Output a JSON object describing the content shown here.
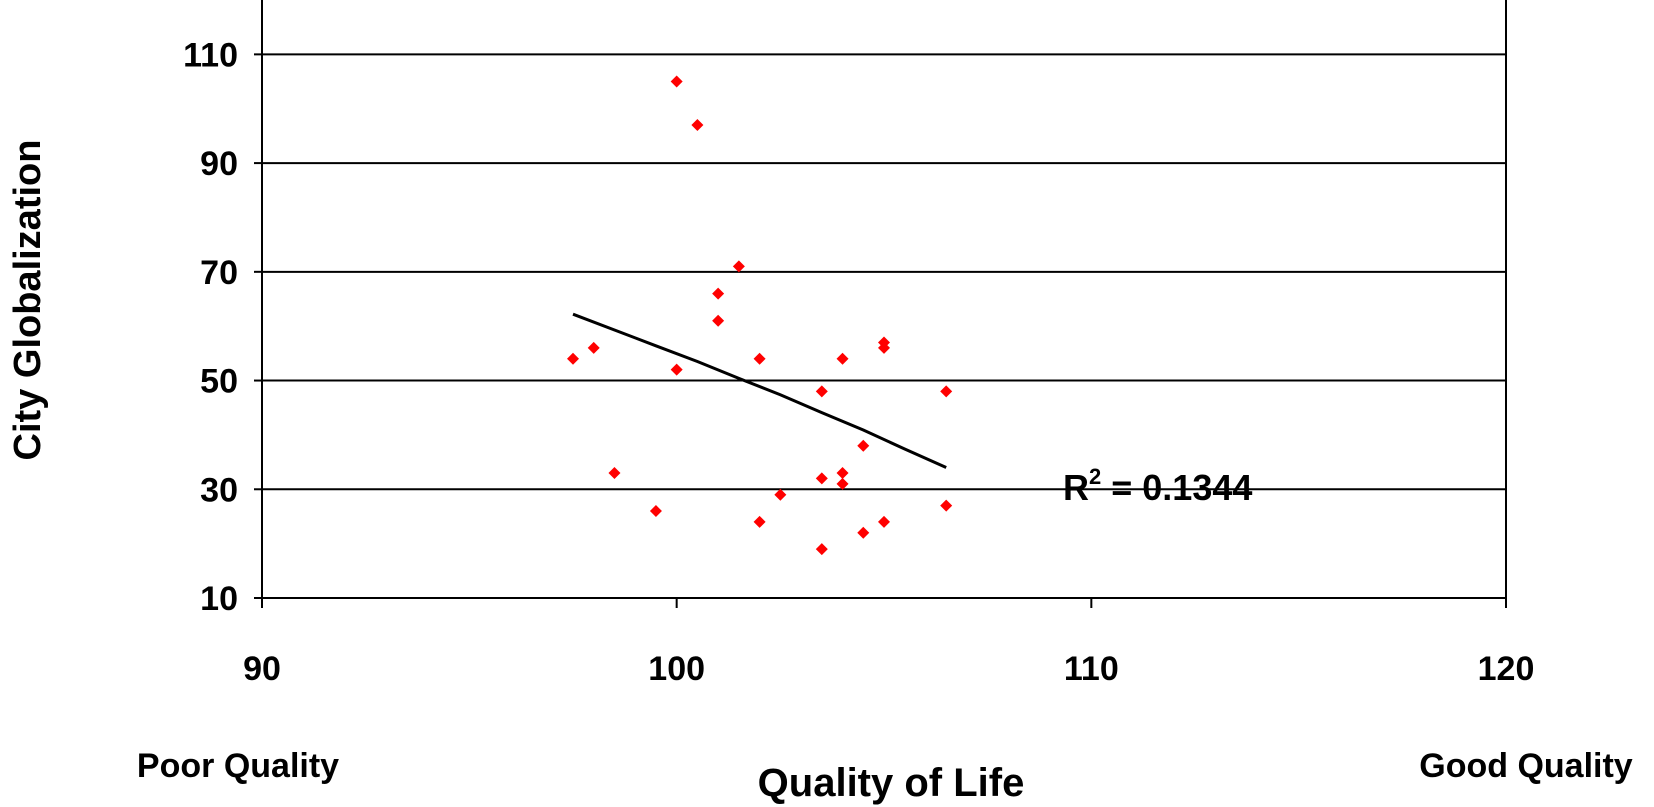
{
  "chart_data": {
    "type": "scatter",
    "title": "",
    "xlabel": "Quality of Life",
    "ylabel": "City Globalization",
    "x_end_labels": {
      "left": "Poor Quality",
      "right": "Good Quality"
    },
    "xlim": [
      90,
      120
    ],
    "ylim": [
      10,
      120
    ],
    "x_ticks": [
      90,
      100,
      110,
      120
    ],
    "y_ticks": [
      10,
      30,
      50,
      70,
      90,
      110
    ],
    "grid": "horizontal",
    "legend": "none",
    "point_color": "#ff0000",
    "line_color": "#000000",
    "points": [
      {
        "x": 97.5,
        "y": 54
      },
      {
        "x": 98.0,
        "y": 56
      },
      {
        "x": 98.5,
        "y": 33
      },
      {
        "x": 99.5,
        "y": 26
      },
      {
        "x": 100.0,
        "y": 105
      },
      {
        "x": 100.0,
        "y": 52
      },
      {
        "x": 100.5,
        "y": 97
      },
      {
        "x": 101.0,
        "y": 66
      },
      {
        "x": 101.0,
        "y": 61
      },
      {
        "x": 101.5,
        "y": 71
      },
      {
        "x": 102.0,
        "y": 54
      },
      {
        "x": 102.0,
        "y": 24
      },
      {
        "x": 102.5,
        "y": 29
      },
      {
        "x": 103.5,
        "y": 48
      },
      {
        "x": 103.5,
        "y": 32
      },
      {
        "x": 103.5,
        "y": 19
      },
      {
        "x": 104.0,
        "y": 54
      },
      {
        "x": 104.0,
        "y": 33
      },
      {
        "x": 104.0,
        "y": 31
      },
      {
        "x": 104.5,
        "y": 38
      },
      {
        "x": 104.5,
        "y": 22
      },
      {
        "x": 105.0,
        "y": 57
      },
      {
        "x": 105.0,
        "y": 56
      },
      {
        "x": 105.0,
        "y": 24
      },
      {
        "x": 106.5,
        "y": 48
      },
      {
        "x": 106.5,
        "y": 27
      }
    ],
    "trendline": [
      {
        "x": 97.5,
        "y": 62.2
      },
      {
        "x": 98.5,
        "y": 59.3
      },
      {
        "x": 99.5,
        "y": 56.4
      },
      {
        "x": 100.5,
        "y": 53.5
      },
      {
        "x": 101.5,
        "y": 50.4
      },
      {
        "x": 102.5,
        "y": 47.4
      },
      {
        "x": 103.5,
        "y": 44.1
      },
      {
        "x": 104.5,
        "y": 40.9
      },
      {
        "x": 105.5,
        "y": 37.4
      },
      {
        "x": 106.5,
        "y": 34.0
      }
    ],
    "annotation": {
      "r_label": "R",
      "r_exponent": "2",
      "r_value": " = 0.1344",
      "x": 108,
      "y": 34
    }
  }
}
